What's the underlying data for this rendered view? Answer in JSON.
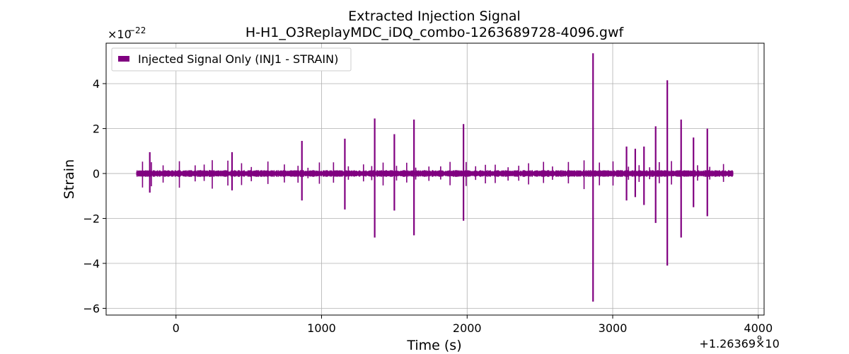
{
  "chart_data": {
    "type": "line",
    "title": "Extracted Injection Signal",
    "subtitle": "H-H1_O3ReplayMDC_iDQ_combo-1263689728-4096.gwf",
    "xlabel": "Time (s)",
    "ylabel": "Strain",
    "x_offset_label": "+1.26369",
    "x_offset_exp": "9",
    "y_scale_label": "×10",
    "y_scale_exp": "−22",
    "xlim": [
      -480,
      4040
    ],
    "ylim": [
      -6.3,
      5.8
    ],
    "x_ticks": [
      0,
      1000,
      2000,
      3000,
      4000
    ],
    "x_tick_labels": [
      "0",
      "1000",
      "2000",
      "3000",
      "4000"
    ],
    "y_ticks": [
      -6,
      -4,
      -2,
      0,
      2,
      4
    ],
    "y_tick_labels": [
      "−6",
      "−4",
      "−2",
      "0",
      "2",
      "4"
    ],
    "grid": true,
    "legend_position": "top-left",
    "series": [
      {
        "name": "Injected Signal Only (INJ1 - STRAIN)",
        "color": "#800080",
        "x_range": [
          -270,
          3826
        ],
        "baseline_amplitude": 0.15,
        "spikes": [
          {
            "x": -180,
            "up": 0.95,
            "down": -0.85
          },
          {
            "x": 385,
            "up": 0.95,
            "down": -0.75
          },
          {
            "x": 865,
            "up": 1.45,
            "down": -1.2
          },
          {
            "x": 1160,
            "up": 1.55,
            "down": -1.6
          },
          {
            "x": 1365,
            "up": 2.45,
            "down": -2.85
          },
          {
            "x": 1500,
            "up": 1.75,
            "down": -1.65
          },
          {
            "x": 1635,
            "up": 2.4,
            "down": -2.75
          },
          {
            "x": 1975,
            "up": 2.2,
            "down": -2.1
          },
          {
            "x": 2865,
            "up": 5.35,
            "down": -5.7
          },
          {
            "x": 3095,
            "up": 1.2,
            "down": -1.2
          },
          {
            "x": 3155,
            "up": 1.1,
            "down": -1.05
          },
          {
            "x": 3215,
            "up": 1.2,
            "down": -1.4
          },
          {
            "x": 3295,
            "up": 2.1,
            "down": -2.2
          },
          {
            "x": 3375,
            "up": 4.15,
            "down": -4.1
          },
          {
            "x": 3470,
            "up": 2.4,
            "down": -2.85
          },
          {
            "x": 3555,
            "up": 1.6,
            "down": -1.5
          },
          {
            "x": 3650,
            "up": 2.0,
            "down": -1.9
          }
        ]
      }
    ]
  }
}
